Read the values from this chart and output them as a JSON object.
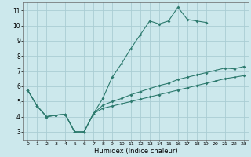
{
  "title": "",
  "xlabel": "Humidex (Indice chaleur)",
  "bg_color": "#cce8ec",
  "grid_color": "#aacdd4",
  "line_color": "#2d7a6e",
  "x_values": [
    0,
    1,
    2,
    3,
    4,
    5,
    6,
    7,
    8,
    9,
    10,
    11,
    12,
    13,
    14,
    15,
    16,
    17,
    18,
    19,
    20,
    21,
    22,
    23
  ],
  "series1": [
    5.75,
    4.7,
    4.0,
    4.1,
    4.15,
    3.0,
    3.0,
    4.2,
    5.2,
    6.6,
    7.5,
    8.5,
    9.4,
    10.3,
    10.1,
    10.3,
    11.2,
    10.4,
    10.3,
    10.2,
    null,
    null,
    null,
    null
  ],
  "series2": [
    5.75,
    4.7,
    4.0,
    4.1,
    4.15,
    3.0,
    3.0,
    4.2,
    4.75,
    5.0,
    5.2,
    5.45,
    5.65,
    5.85,
    6.05,
    6.2,
    6.45,
    6.6,
    6.75,
    6.9,
    7.05,
    7.2,
    7.15,
    7.3
  ],
  "series3": [
    5.75,
    4.7,
    4.0,
    4.1,
    4.15,
    3.0,
    3.0,
    4.2,
    4.55,
    4.7,
    4.85,
    5.0,
    5.15,
    5.3,
    5.45,
    5.6,
    5.75,
    5.9,
    6.05,
    6.2,
    6.35,
    6.5,
    6.6,
    6.7
  ],
  "ylim": [
    2.5,
    11.5
  ],
  "xlim": [
    -0.5,
    23.5
  ],
  "yticks": [
    3,
    4,
    5,
    6,
    7,
    8,
    9,
    10,
    11
  ],
  "xtick_labels": [
    "0",
    "1",
    "2",
    "3",
    "4",
    "5",
    "6",
    "7",
    "8",
    "9",
    "10",
    "11",
    "12",
    "13",
    "14",
    "15",
    "16",
    "17",
    "18",
    "19",
    "20",
    "21",
    "22",
    "23"
  ]
}
